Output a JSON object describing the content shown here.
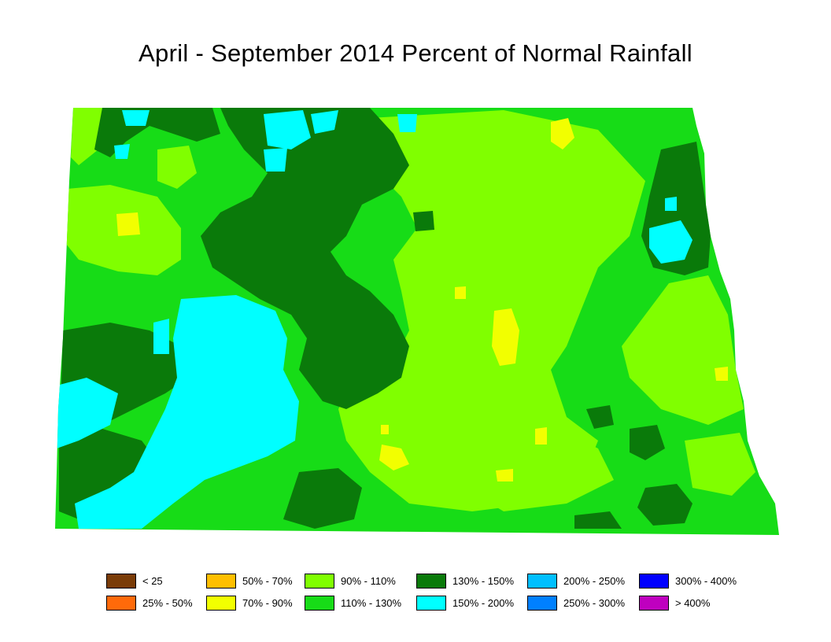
{
  "title": "April - September 2014 Percent of Normal Rainfall",
  "legend": [
    {
      "label": "< 25",
      "color": "#7a3c08"
    },
    {
      "label": "25% - 50%",
      "color": "#ff6a0a"
    },
    {
      "label": "50% - 70%",
      "color": "#ffbf00"
    },
    {
      "label": "70% - 90%",
      "color": "#f2ff00"
    },
    {
      "label": "90% - 110%",
      "color": "#80ff00"
    },
    {
      "label": "110% - 130%",
      "color": "#17dc17"
    },
    {
      "label": "130% - 150%",
      "color": "#0a7a0a"
    },
    {
      "label": "150% - 200%",
      "color": "#00ffff"
    },
    {
      "label": "200% - 250%",
      "color": "#00bfff"
    },
    {
      "label": "250% - 300%",
      "color": "#0080ff"
    },
    {
      "label": "300% - 400%",
      "color": "#0000ff"
    },
    {
      "label": "> 400%",
      "color": "#bf00bf"
    }
  ],
  "colors": {
    "c70_90": "#f2ff00",
    "c90_110": "#80ff00",
    "c110_130": "#17dc17",
    "c130_150": "#0a7a0a",
    "c150_200": "#00ffff"
  }
}
